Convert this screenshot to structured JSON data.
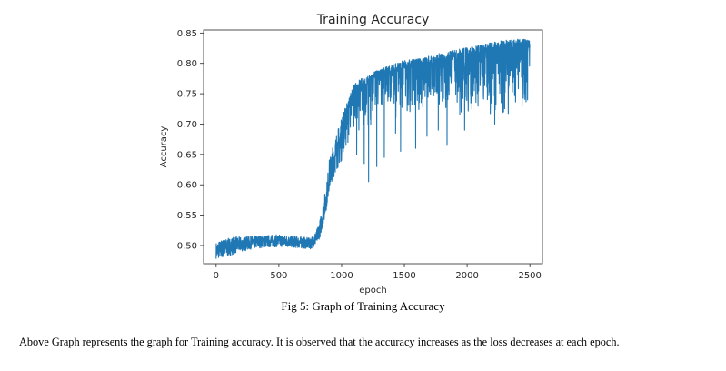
{
  "chart_data": {
    "type": "line",
    "title": "Training Accuracy",
    "xlabel": "epoch",
    "ylabel": "Accuracy",
    "xlim": [
      -100,
      2600
    ],
    "ylim": [
      0.47,
      0.855
    ],
    "xticks": [
      0,
      500,
      1000,
      1500,
      2000,
      2500
    ],
    "yticks": [
      0.5,
      0.55,
      0.6,
      0.65,
      0.7,
      0.75,
      0.8,
      0.85
    ],
    "grid": false,
    "color": "#1f77b4",
    "series": [
      {
        "x": [
          0,
          50,
          100,
          150,
          200,
          300,
          400,
          500,
          600,
          700,
          750,
          800,
          830,
          860,
          880,
          900,
          950,
          1000,
          1050,
          1100,
          1150,
          1200,
          1250,
          1300,
          1400,
          1500,
          1600,
          1700,
          1800,
          1900,
          2000,
          2100,
          2200,
          2300,
          2400,
          2500
        ],
        "upper": [
          0.505,
          0.51,
          0.512,
          0.515,
          0.514,
          0.516,
          0.517,
          0.518,
          0.516,
          0.514,
          0.512,
          0.525,
          0.545,
          0.58,
          0.6,
          0.64,
          0.68,
          0.71,
          0.74,
          0.765,
          0.775,
          0.778,
          0.785,
          0.79,
          0.798,
          0.805,
          0.808,
          0.812,
          0.818,
          0.822,
          0.826,
          0.83,
          0.835,
          0.838,
          0.84,
          0.84
        ],
        "lower": [
          0.478,
          0.48,
          0.482,
          0.487,
          0.49,
          0.495,
          0.497,
          0.498,
          0.497,
          0.495,
          0.494,
          0.5,
          0.515,
          0.54,
          0.56,
          0.59,
          0.62,
          0.64,
          0.66,
          0.68,
          0.69,
          0.695,
          0.7,
          0.705,
          0.707,
          0.71,
          0.712,
          0.714,
          0.715,
          0.716,
          0.716,
          0.716,
          0.716,
          0.716,
          0.716,
          0.718
        ],
        "dips": [
          [
            1050,
            0.67
          ],
          [
            1120,
            0.65
          ],
          [
            1180,
            0.635
          ],
          [
            1215,
            0.605
          ],
          [
            1280,
            0.63
          ],
          [
            1340,
            0.645
          ],
          [
            1430,
            0.685
          ],
          [
            1470,
            0.655
          ],
          [
            1590,
            0.66
          ],
          [
            1680,
            0.68
          ],
          [
            1770,
            0.69
          ],
          [
            1840,
            0.665
          ],
          [
            1980,
            0.69
          ],
          [
            2220,
            0.7
          ],
          [
            2290,
            0.72
          ]
        ]
      }
    ]
  },
  "caption": "Fig 5: Graph of  Training Accuracy",
  "body_text": "Above Graph represents the graph for Training accuracy. It is observed that the accuracy increases as the loss decreases at each epoch."
}
